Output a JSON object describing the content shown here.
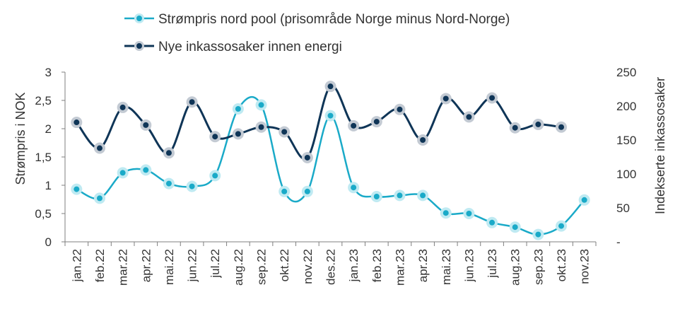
{
  "chart_data": {
    "type": "line",
    "categories": [
      "jan.22",
      "feb.22",
      "mar.22",
      "apr.22",
      "mai.22",
      "jun.22",
      "jul.22",
      "aug.22",
      "sep.22",
      "okt.22",
      "nov.22",
      "des.22",
      "jan.23",
      "feb.23",
      "mar.23",
      "apr.23",
      "mai.23",
      "jun.23",
      "jul.23",
      "aug.23",
      "sep.23",
      "okt.23",
      "nov.23"
    ],
    "series": [
      {
        "name": "Strømpris nord pool (prisområde Norge minus Nord-Norge)",
        "axis": "left",
        "color": "#1aaac8",
        "marker_halo": "#bfeaf2",
        "values": [
          0.93,
          0.77,
          1.22,
          1.27,
          1.03,
          0.98,
          1.17,
          2.35,
          2.42,
          0.89,
          0.89,
          2.23,
          0.96,
          0.8,
          0.82,
          0.82,
          0.51,
          0.5,
          0.34,
          0.26,
          0.13,
          0.28,
          0.74
        ]
      },
      {
        "name": "Nye inkassosaker innen energi",
        "axis": "right",
        "color": "#0f3557",
        "marker_halo": "#c3cad3",
        "values": [
          176,
          138,
          198,
          172,
          131,
          206,
          155,
          159,
          169,
          162,
          124,
          229,
          171,
          177,
          195,
          150,
          211,
          184,
          212,
          168,
          173,
          169,
          null
        ]
      }
    ],
    "ylabel": "Strømpris i NOK",
    "y2label": "Indekserte inkassosaker",
    "ylim": [
      0,
      3
    ],
    "y2lim": [
      0,
      250
    ],
    "yticks": [
      "0",
      "0,5",
      "1",
      "1,5",
      "2",
      "2,5",
      "3"
    ],
    "y2ticks": [
      "-",
      "50",
      "100",
      "150",
      "200",
      "250"
    ],
    "legend_position": "top-center",
    "grid": false
  }
}
